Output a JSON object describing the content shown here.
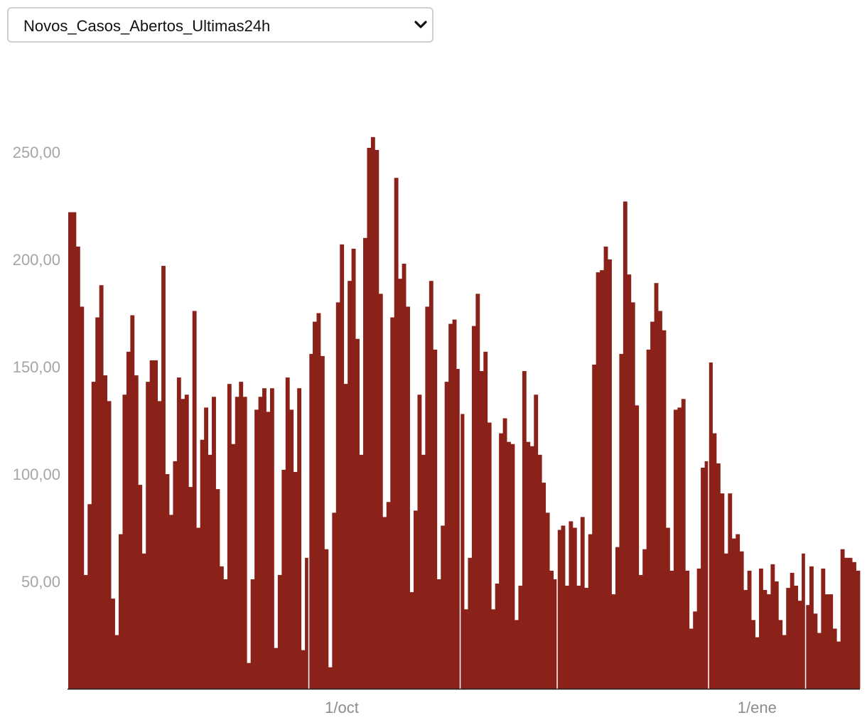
{
  "dropdown": {
    "selected": "Novos_Casos_Abertos_Ultimas24h",
    "icon": "chevron-down-icon"
  },
  "chart_data": {
    "type": "bar",
    "title": "",
    "xlabel": "",
    "ylabel": "",
    "bar_color": "#8b2219",
    "separator_color": "#ffffff",
    "ylim": [
      0,
      280
    ],
    "yticks": [
      {
        "value": 50,
        "label": "50,00"
      },
      {
        "value": 100,
        "label": "100,00"
      },
      {
        "value": 150,
        "label": "150,00"
      },
      {
        "value": 200,
        "label": "200,00"
      },
      {
        "value": 250,
        "label": "250,00"
      }
    ],
    "xticks": [
      {
        "index": 70,
        "label": "1/oct"
      },
      {
        "index": 177,
        "label": "1/ene"
      }
    ],
    "month_separators": [
      62,
      101,
      126,
      165,
      190
    ],
    "values": [
      222,
      222,
      206,
      178,
      53,
      86,
      143,
      173,
      188,
      146,
      134,
      42,
      25,
      72,
      137,
      157,
      174,
      146,
      95,
      63,
      143,
      153,
      153,
      134,
      197,
      100,
      81,
      106,
      145,
      135,
      137,
      94,
      176,
      75,
      116,
      131,
      109,
      136,
      93,
      57,
      51,
      142,
      114,
      136,
      143,
      136,
      12,
      51,
      130,
      136,
      140,
      129,
      140,
      19,
      53,
      102,
      145,
      130,
      101,
      140,
      18,
      61,
      156,
      171,
      175,
      155,
      65,
      10,
      82,
      180,
      207,
      142,
      190,
      205,
      163,
      109,
      210,
      252,
      257,
      251,
      184,
      80,
      87,
      173,
      238,
      191,
      198,
      178,
      45,
      83,
      137,
      109,
      178,
      190,
      158,
      51,
      76,
      143,
      170,
      172,
      149,
      128,
      37,
      61,
      169,
      184,
      148,
      157,
      124,
      37,
      49,
      119,
      126,
      115,
      114,
      32,
      48,
      148,
      115,
      113,
      137,
      109,
      96,
      82,
      55,
      51,
      74,
      76,
      48,
      78,
      75,
      48,
      80,
      47,
      72,
      151,
      194,
      195,
      206,
      200,
      44,
      66,
      156,
      227,
      193,
      180,
      132,
      53,
      65,
      158,
      171,
      189,
      176,
      167,
      75,
      55,
      130,
      131,
      135,
      55,
      28,
      36,
      56,
      103,
      106,
      152,
      119,
      105,
      91,
      63,
      91,
      70,
      72,
      64,
      46,
      55,
      32,
      24,
      56,
      46,
      44,
      58,
      50,
      32,
      25,
      47,
      54,
      48,
      41,
      63,
      39,
      57,
      35,
      26,
      56,
      44,
      44,
      28,
      22,
      65,
      61,
      61,
      59,
      55
    ]
  }
}
